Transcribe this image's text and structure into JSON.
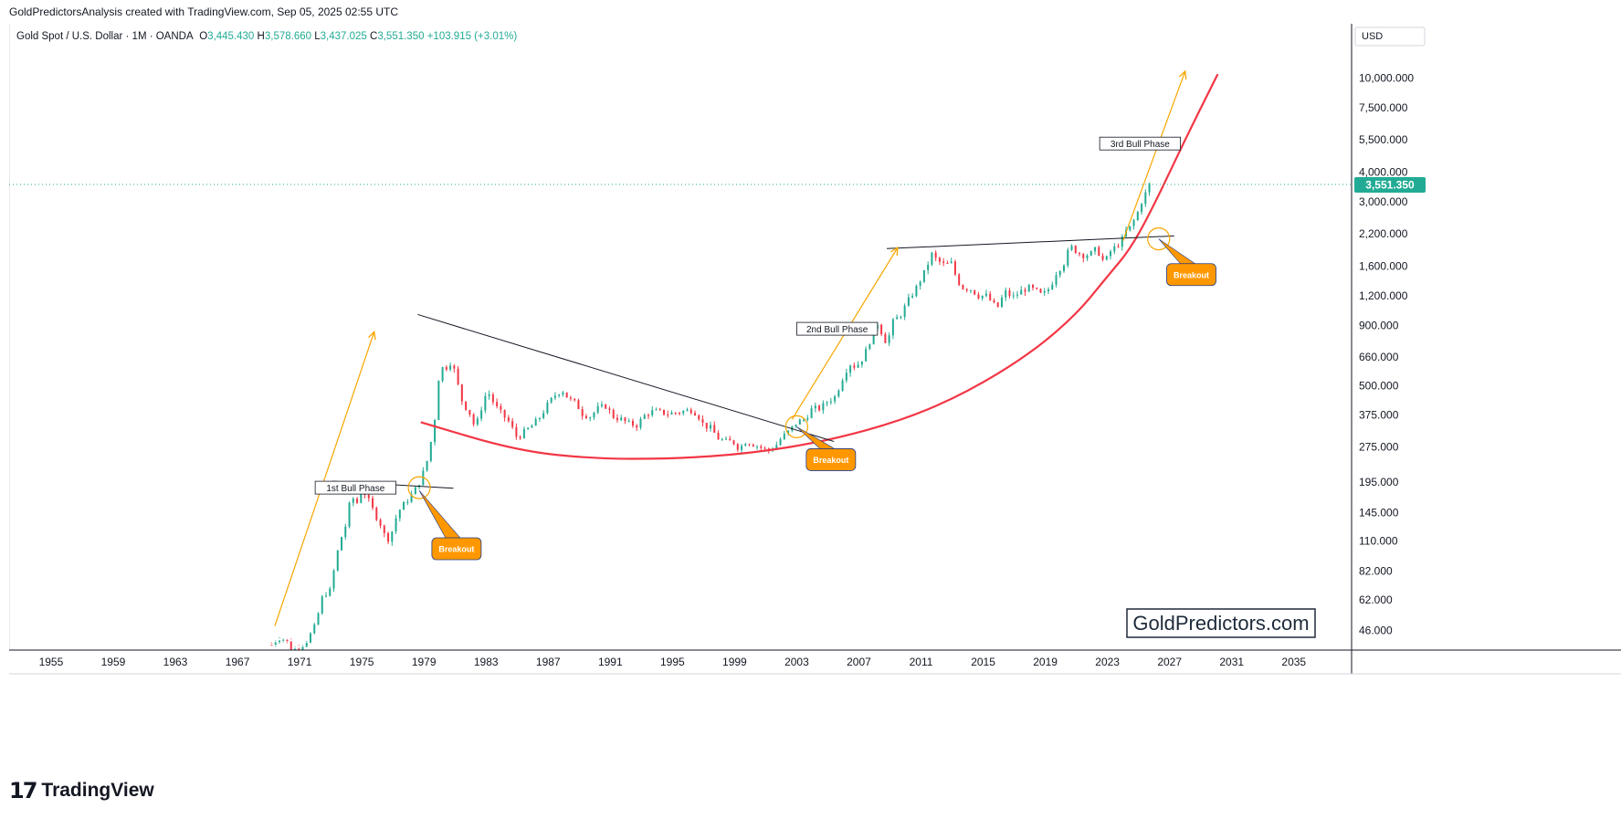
{
  "header": {
    "attribution": "GoldPredictorsAnalysis created with TradingView.com, Sep 05, 2025 02:55 UTC",
    "symbol": "Gold Spot / U.S. Dollar · 1M · OANDA",
    "open_label": "O",
    "open": "3,445.430",
    "high_label": "H",
    "high": "3,578.660",
    "low_label": "L",
    "low": "3,437.025",
    "close_label": "C",
    "close": "3,551.350",
    "change": "+103.915 (+3.01%)"
  },
  "axis": {
    "currency": "USD"
  },
  "brand": {
    "watermark": "GoldPredictors.com",
    "footer": "TradingView",
    "footer_mark": "17"
  },
  "colors": {
    "up": "#22ab94",
    "down": "#f23645",
    "parabola": "#f23645",
    "arrow": "#f7a600",
    "callout": "#ff9800",
    "price_tag": "#22ab94",
    "trendline": "#131722"
  },
  "chart_data": {
    "type": "candlestick",
    "title": "Gold Spot / U.S. Dollar · 1M · OANDA",
    "y_scale": "log",
    "ylim": [
      38,
      17000
    ],
    "xlim": [
      1952.3,
      2038.6
    ],
    "y_ticks": [
      {
        "v": 46,
        "label": "46.000"
      },
      {
        "v": 62,
        "label": "62.000"
      },
      {
        "v": 82,
        "label": "82.000"
      },
      {
        "v": 110,
        "label": "110.000"
      },
      {
        "v": 145,
        "label": "145.000"
      },
      {
        "v": 195,
        "label": "195.000"
      },
      {
        "v": 275,
        "label": "275.000"
      },
      {
        "v": 375,
        "label": "375.000"
      },
      {
        "v": 500,
        "label": "500.000"
      },
      {
        "v": 660,
        "label": "660.000"
      },
      {
        "v": 900,
        "label": "900.000"
      },
      {
        "v": 1200,
        "label": "1,200.000"
      },
      {
        "v": 1600,
        "label": "1,600.000"
      },
      {
        "v": 2200,
        "label": "2,200.000"
      },
      {
        "v": 3000,
        "label": "3,000.000"
      },
      {
        "v": 4000,
        "label": "4,000.000"
      },
      {
        "v": 5500,
        "label": "5,500.000"
      },
      {
        "v": 7500,
        "label": "7,500.000"
      },
      {
        "v": 10000,
        "label": "10,000.000"
      }
    ],
    "x_ticks": [
      {
        "v": 1955,
        "label": "1955"
      },
      {
        "v": 1959,
        "label": "1959"
      },
      {
        "v": 1963,
        "label": "1963"
      },
      {
        "v": 1967,
        "label": "1967"
      },
      {
        "v": 1971,
        "label": "1971"
      },
      {
        "v": 1975,
        "label": "1975"
      },
      {
        "v": 1979,
        "label": "1979"
      },
      {
        "v": 1983,
        "label": "1983"
      },
      {
        "v": 1987,
        "label": "1987"
      },
      {
        "v": 1991,
        "label": "1991"
      },
      {
        "v": 1995,
        "label": "1995"
      },
      {
        "v": 1999,
        "label": "1999"
      },
      {
        "v": 2003,
        "label": "2003"
      },
      {
        "v": 2007,
        "label": "2007"
      },
      {
        "v": 2011,
        "label": "2011"
      },
      {
        "v": 2015,
        "label": "2015"
      },
      {
        "v": 2019,
        "label": "2019"
      },
      {
        "v": 2023,
        "label": "2023"
      },
      {
        "v": 2027,
        "label": "2027"
      },
      {
        "v": 2031,
        "label": "2031"
      },
      {
        "v": 2035,
        "label": "2035"
      }
    ],
    "price_path": [
      [
        1969.2,
        40
      ],
      [
        1969.5,
        42
      ],
      [
        1969.8,
        43
      ],
      [
        1970.2,
        41
      ],
      [
        1970.5,
        38
      ],
      [
        1971.0,
        39
      ],
      [
        1971.5,
        42
      ],
      [
        1972.0,
        48
      ],
      [
        1972.5,
        65
      ],
      [
        1973.0,
        68
      ],
      [
        1973.3,
        90
      ],
      [
        1973.6,
        110
      ],
      [
        1974.0,
        130
      ],
      [
        1974.3,
        170
      ],
      [
        1974.7,
        160
      ],
      [
        1975.0,
        185
      ],
      [
        1975.2,
        175
      ],
      [
        1975.5,
        160
      ],
      [
        1975.8,
        145
      ],
      [
        1976.2,
        130
      ],
      [
        1976.6,
        110
      ],
      [
        1976.9,
        118
      ],
      [
        1977.3,
        145
      ],
      [
        1977.8,
        160
      ],
      [
        1978.3,
        175
      ],
      [
        1978.8,
        200
      ],
      [
        1979.2,
        240
      ],
      [
        1979.5,
        300
      ],
      [
        1979.8,
        400
      ],
      [
        1980.05,
        650
      ],
      [
        1980.3,
        560
      ],
      [
        1980.6,
        640
      ],
      [
        1980.9,
        600
      ],
      [
        1981.2,
        500
      ],
      [
        1981.5,
        420
      ],
      [
        1981.9,
        390
      ],
      [
        1982.3,
        330
      ],
      [
        1982.6,
        380
      ],
      [
        1982.9,
        450
      ],
      [
        1983.2,
        460
      ],
      [
        1983.6,
        410
      ],
      [
        1984.0,
        380
      ],
      [
        1984.5,
        350
      ],
      [
        1985.0,
        300
      ],
      [
        1985.5,
        320
      ],
      [
        1986.0,
        340
      ],
      [
        1986.5,
        370
      ],
      [
        1987.0,
        420
      ],
      [
        1987.5,
        460
      ],
      [
        1987.9,
        480
      ],
      [
        1988.3,
        440
      ],
      [
        1988.8,
        420
      ],
      [
        1989.2,
        380
      ],
      [
        1989.7,
        370
      ],
      [
        1990.2,
        400
      ],
      [
        1990.7,
        410
      ],
      [
        1991.2,
        370
      ],
      [
        1991.7,
        360
      ],
      [
        1992.2,
        345
      ],
      [
        1992.7,
        340
      ],
      [
        1993.3,
        380
      ],
      [
        1993.8,
        390
      ],
      [
        1994.3,
        385
      ],
      [
        1994.8,
        380
      ],
      [
        1995.3,
        385
      ],
      [
        1995.8,
        390
      ],
      [
        1996.2,
        395
      ],
      [
        1996.6,
        380
      ],
      [
        1997.0,
        340
      ],
      [
        1997.5,
        330
      ],
      [
        1997.9,
        300
      ],
      [
        1998.4,
        290
      ],
      [
        1998.9,
        290
      ],
      [
        1999.3,
        270
      ],
      [
        1999.7,
        290
      ],
      [
        2000.1,
        285
      ],
      [
        2000.6,
        275
      ],
      [
        2001.1,
        265
      ],
      [
        2001.6,
        275
      ],
      [
        2002.0,
        300
      ],
      [
        2002.5,
        320
      ],
      [
        2003.0,
        350
      ],
      [
        2003.5,
        360
      ],
      [
        2004.0,
        400
      ],
      [
        2004.5,
        400
      ],
      [
        2005.0,
        430
      ],
      [
        2005.5,
        450
      ],
      [
        2006.0,
        550
      ],
      [
        2006.4,
        620
      ],
      [
        2006.8,
        600
      ],
      [
        2007.3,
        660
      ],
      [
        2007.8,
        800
      ],
      [
        2008.2,
        920
      ],
      [
        2008.8,
        750
      ],
      [
        2009.2,
        930
      ],
      [
        2009.7,
        1000
      ],
      [
        2010.2,
        1150
      ],
      [
        2010.7,
        1300
      ],
      [
        2011.2,
        1500
      ],
      [
        2011.7,
        1800
      ],
      [
        2012.0,
        1700
      ],
      [
        2012.5,
        1620
      ],
      [
        2013.0,
        1650
      ],
      [
        2013.3,
        1400
      ],
      [
        2013.7,
        1300
      ],
      [
        2014.2,
        1280
      ],
      [
        2014.7,
        1200
      ],
      [
        2015.2,
        1200
      ],
      [
        2015.9,
        1060
      ],
      [
        2016.4,
        1250
      ],
      [
        2016.9,
        1180
      ],
      [
        2017.4,
        1250
      ],
      [
        2017.9,
        1300
      ],
      [
        2018.4,
        1260
      ],
      [
        2018.8,
        1200
      ],
      [
        2019.3,
        1300
      ],
      [
        2019.7,
        1500
      ],
      [
        2020.2,
        1650
      ],
      [
        2020.6,
        1950
      ],
      [
        2021.0,
        1850
      ],
      [
        2021.4,
        1780
      ],
      [
        2021.9,
        1800
      ],
      [
        2022.3,
        1900
      ],
      [
        2022.8,
        1650
      ],
      [
        2023.2,
        1850
      ],
      [
        2023.6,
        1950
      ],
      [
        2023.9,
        2050
      ],
      [
        2024.2,
        2250
      ],
      [
        2024.5,
        2350
      ],
      [
        2024.9,
        2650
      ],
      [
        2025.2,
        3000
      ],
      [
        2025.5,
        3300
      ],
      [
        2025.7,
        3551
      ]
    ],
    "series": [
      {
        "name": "Parabolic support",
        "type": "curve",
        "color": "#f23645",
        "points": [
          [
            1978.8,
            350
          ],
          [
            1985,
            265
          ],
          [
            1990,
            245
          ],
          [
            1995,
            245
          ],
          [
            2000,
            258
          ],
          [
            2005,
            292
          ],
          [
            2010,
            360
          ],
          [
            2014,
            470
          ],
          [
            2018,
            680
          ],
          [
            2021,
            1000
          ],
          [
            2023,
            1450
          ],
          [
            2024.5,
            1900
          ],
          [
            2026,
            2900
          ],
          [
            2028,
            5500
          ],
          [
            2030.1,
            10400
          ]
        ]
      },
      {
        "name": "Resistance 1970s",
        "type": "line",
        "color": "#131722",
        "points": [
          [
            1973.1,
            197
          ],
          [
            1980.9,
            184
          ]
        ]
      },
      {
        "name": "Descending resistance",
        "type": "line",
        "color": "#131722",
        "points": [
          [
            1978.6,
            1000
          ],
          [
            2005.4,
            290
          ]
        ]
      },
      {
        "name": "Resistance 2011-2024",
        "type": "line",
        "color": "#131722",
        "points": [
          [
            2008.8,
            1900
          ],
          [
            2027.3,
            2150
          ]
        ]
      },
      {
        "name": "Bull arrow 1",
        "type": "arrow",
        "color": "#f7a600",
        "points": [
          [
            1969.4,
            48
          ],
          [
            1975.8,
            845
          ]
        ]
      },
      {
        "name": "Bull arrow 2",
        "type": "arrow",
        "color": "#f7a600",
        "points": [
          [
            2002.7,
            360
          ],
          [
            2009.5,
            1920
          ]
        ]
      },
      {
        "name": "Bull arrow 3",
        "type": "arrow",
        "color": "#f7a600",
        "points": [
          [
            2024.0,
            2050
          ],
          [
            2028.0,
            10700
          ]
        ]
      }
    ],
    "annotations": [
      {
        "text": "1st Bull Phase",
        "x": 1974.6,
        "y": 185
      },
      {
        "text": "2nd Bull Phase",
        "x": 2005.6,
        "y": 870
      },
      {
        "text": "3rd Bull Phase",
        "x": 2025.1,
        "y": 5290
      },
      {
        "text": "Breakout",
        "x": 1981.1,
        "y": 102,
        "target_x": 1978.7,
        "target_y": 180
      },
      {
        "text": "Breakout",
        "x": 2005.2,
        "y": 243,
        "target_x": 2003.0,
        "target_y": 335
      },
      {
        "text": "Breakout",
        "x": 2028.4,
        "y": 1475,
        "target_x": 2026.3,
        "target_y": 2090
      }
    ],
    "breakout_circles": [
      {
        "x": 1978.7,
        "y": 185
      },
      {
        "x": 2003.0,
        "y": 335
      },
      {
        "x": 2026.3,
        "y": 2090
      }
    ],
    "last_price": {
      "value": 3551.35,
      "label": "3,551.350"
    },
    "xlabel": "",
    "ylabel": ""
  }
}
